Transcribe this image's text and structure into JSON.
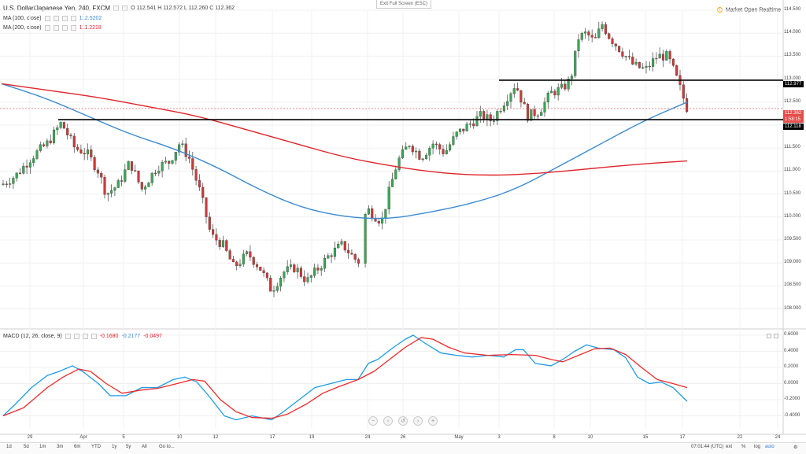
{
  "header": {
    "title": "U.S. Dollar/Japanese Yen, 240, FXCM",
    "ohlc": "O 112.541  H 112.572  L 112.260  C 112.362",
    "ma100_label": "MA (100, close)",
    "ma100_value": "112.5202",
    "ma200_label": "MA (200, close)",
    "ma200_value": "111.2218",
    "exit_fullscreen": "Exit Full Screen (ESC)",
    "market_status": "Market Open",
    "realtime": "Realtime"
  },
  "macd": {
    "label": "MACD (12, 26, close, 9)",
    "v1": "-0.1680",
    "v2": "-0.2177",
    "v3": "-0.0497"
  },
  "price_axis": {
    "ticks": [
      "114.500",
      "114.000",
      "113.500",
      "113.000",
      "112.500",
      "112.000",
      "111.500",
      "111.000",
      "110.500",
      "110.000",
      "109.500",
      "109.000",
      "108.500",
      "108.000"
    ],
    "upper_line_label": "112.977",
    "current_price_label": "112.362",
    "countdown_label": "1:58:15",
    "lower_line_label": "112.118"
  },
  "macd_axis": {
    "ticks": [
      "0.6000",
      "0.4000",
      "0.2000",
      "0.0000",
      "-0.2000",
      "-0.4000"
    ]
  },
  "time_axis": {
    "ticks": [
      "29",
      "Apr",
      "5",
      "10",
      "12",
      "17",
      "19",
      "24",
      "26",
      "May",
      "3",
      "8",
      "10",
      "15",
      "17",
      "22",
      "24"
    ]
  },
  "bottom_bar": {
    "ranges": [
      "1d",
      "5d",
      "1m",
      "3m",
      "6m",
      "YTD",
      "1y",
      "5y",
      "All",
      "Go to..."
    ],
    "time": "07:01:44 (UTC)",
    "ext": "ext",
    "pct": "%",
    "log": "log",
    "auto": "auto"
  },
  "colors": {
    "up": "#3aa654",
    "down": "#c93a3a",
    "ma100": "#3d8bd1",
    "ma200": "#e0242b",
    "macd": "#1e9be6",
    "signal": "#ef2a2a"
  },
  "chart_data": [
    {
      "type": "candlestick",
      "title": "U.S. Dollar/Japanese Yen, 240, FXCM",
      "ylim": [
        107.8,
        114.6
      ],
      "horizontal_levels": [
        112.977,
        112.118
      ],
      "series": [
        {
          "name": "MA (100, close)",
          "values": [
            112.9,
            112.6,
            112.2,
            111.8,
            111.5,
            111.1,
            110.6,
            110.2,
            110.0,
            109.95,
            110.1,
            110.3,
            110.6,
            111.1,
            111.6,
            112.1,
            112.5
          ]
        },
        {
          "name": "MA (200, close)",
          "values": [
            112.9,
            112.75,
            112.6,
            112.4,
            112.2,
            111.9,
            111.6,
            111.3,
            111.1,
            110.95,
            110.9,
            110.95,
            111.05,
            111.15,
            111.22
          ]
        }
      ]
    },
    {
      "type": "line",
      "title": "MACD (12, 26, close, 9)",
      "ylim": [
        -0.5,
        0.65
      ]
    }
  ]
}
